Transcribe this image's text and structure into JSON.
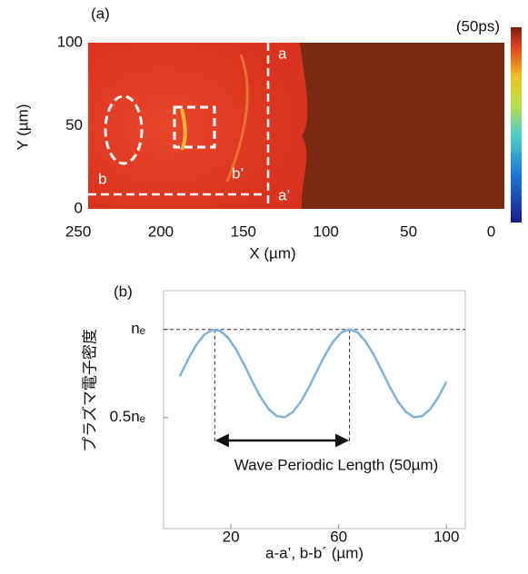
{
  "chart_data": [
    {
      "type": "image",
      "panel_label": "(a)",
      "colorbar_label": "(50ps)",
      "xlabel": "X (µm)",
      "ylabel": "Y (µm)",
      "xlim": [
        244,
        -8
      ],
      "ylim": [
        0,
        100
      ],
      "xticks": [
        250,
        200,
        150,
        100,
        50,
        0
      ],
      "yticks": [
        0,
        50,
        100
      ],
      "annotations": [
        "a",
        "a’",
        "b",
        "b’"
      ]
    },
    {
      "type": "line",
      "panel_label": "(b)",
      "xlabel": "a-a’, b-b´ (µm)",
      "ylabel": "プラズマ電子密度",
      "xlim": [
        -5,
        107
      ],
      "ylim": [
        -0.13,
        1.22
      ],
      "xticks": [
        20,
        60,
        100
      ],
      "yticks": [
        {
          "value": 1,
          "label": "nₑ"
        },
        {
          "value": 0.5,
          "label": "0.5nₑ"
        }
      ],
      "x": [
        1,
        4,
        7,
        10,
        13,
        16,
        19,
        22,
        25,
        28,
        31,
        34,
        37,
        40,
        43,
        46,
        49,
        52,
        55,
        58,
        61,
        64,
        67,
        70,
        73,
        76,
        79,
        82,
        85,
        88,
        91,
        94,
        97,
        100
      ],
      "series": [
        {
          "color": "#7fb2d8",
          "values": [
            0.734,
            0.827,
            0.909,
            0.969,
            0.998,
            0.992,
            0.952,
            0.884,
            0.797,
            0.703,
            0.616,
            0.548,
            0.508,
            0.502,
            0.531,
            0.591,
            0.673,
            0.766,
            0.857,
            0.932,
            0.983,
            1.0,
            0.983,
            0.932,
            0.857,
            0.766,
            0.673,
            0.591,
            0.531,
            0.502,
            0.508,
            0.548,
            0.616,
            0.703
          ]
        }
      ],
      "hline": 1,
      "vlines": [
        14,
        64
      ],
      "arrow": {
        "x": [
          14,
          64
        ],
        "y": 0.37,
        "label": "Wave Periodic Length (50µm)"
      }
    }
  ]
}
